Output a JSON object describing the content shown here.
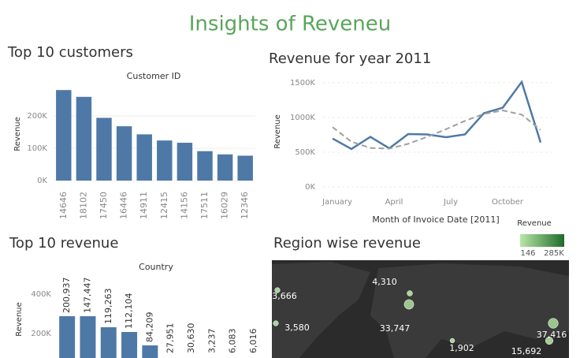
{
  "title": "Insights of Reveneu",
  "chart_data": [
    {
      "type": "bar",
      "title": "Top 10 customers",
      "subtitle": "Customer ID",
      "y_label": "Revenue",
      "categories": [
        "14646",
        "18102",
        "17450",
        "16446",
        "14911",
        "12415",
        "14156",
        "17511",
        "16029",
        "12346"
      ],
      "values": [
        280000,
        259000,
        194000,
        168000,
        143000,
        124000,
        117000,
        91000,
        81000,
        77000
      ],
      "color": "#4e79a7",
      "ylim": [
        0,
        300000
      ],
      "yticks": [
        {
          "value": 0,
          "label": "0K"
        },
        {
          "value": 100000,
          "label": "100K"
        },
        {
          "value": 200000,
          "label": "200K"
        }
      ],
      "grid": true
    },
    {
      "type": "line",
      "title": "Revenue for year 2011",
      "x_label": "Month of Invoice Date [2011]",
      "y_label": "Revenue",
      "categories": [
        "January",
        null,
        null,
        "April",
        null,
        null,
        "July",
        null,
        null,
        "October",
        null,
        null
      ],
      "series": [
        {
          "color": "#4e79a7",
          "values": [
            696000,
            545000,
            720000,
            555000,
            760000,
            755000,
            715000,
            755000,
            1060000,
            1140000,
            1510000,
            640000
          ]
        },
        {
          "color": "#a0a0a0",
          "dashed": true,
          "values": [
            860000,
            650000,
            560000,
            550000,
            620000,
            720000,
            830000,
            950000,
            1050000,
            1100000,
            1040000,
            820000
          ]
        }
      ],
      "ylim": [
        0,
        1600000
      ],
      "yticks": [
        {
          "value": 0,
          "label": "0K"
        },
        {
          "value": 500000,
          "label": "500K"
        },
        {
          "value": 1000000,
          "label": "1000K"
        },
        {
          "value": 1500000,
          "label": "1500K"
        }
      ],
      "grid": true
    },
    {
      "type": "bar",
      "title": "Top 10 revenue",
      "subtitle": "Country",
      "y_label": "Revenue",
      "categories": [
        null,
        null,
        null,
        null,
        null,
        null,
        null,
        null,
        null,
        null
      ],
      "values": [
        288000,
        288000,
        232000,
        208000,
        140000,
        60000,
        55000,
        45000,
        40000,
        38000
      ],
      "text_labels": [
        "200,937",
        "147,447",
        "119,263",
        "112,104",
        "84,209",
        "27,951",
        "30,630",
        "3,237",
        "6,083",
        "6,016"
      ],
      "color": "#4e79a7",
      "ylim": [
        0,
        500000
      ],
      "yticks": [
        {
          "value": 200000,
          "label": "200K"
        },
        {
          "value": 400000,
          "label": "400K"
        }
      ],
      "grid": false
    },
    {
      "type": "map",
      "title": "Region wise revenue",
      "legend_title": "Revenue",
      "color_min": 146,
      "color_max": {
        "value": 285000,
        "label": "285K"
      },
      "colors": [
        "#b8e6a8",
        "#1e6b2a"
      ],
      "values": [
        4310,
        3666,
        3580,
        33747,
        1902,
        15692,
        37416
      ],
      "value_labels": [
        "4,310",
        "3,666",
        "3,580",
        "33,747",
        "1,902",
        "15,692",
        "37,416"
      ]
    }
  ]
}
